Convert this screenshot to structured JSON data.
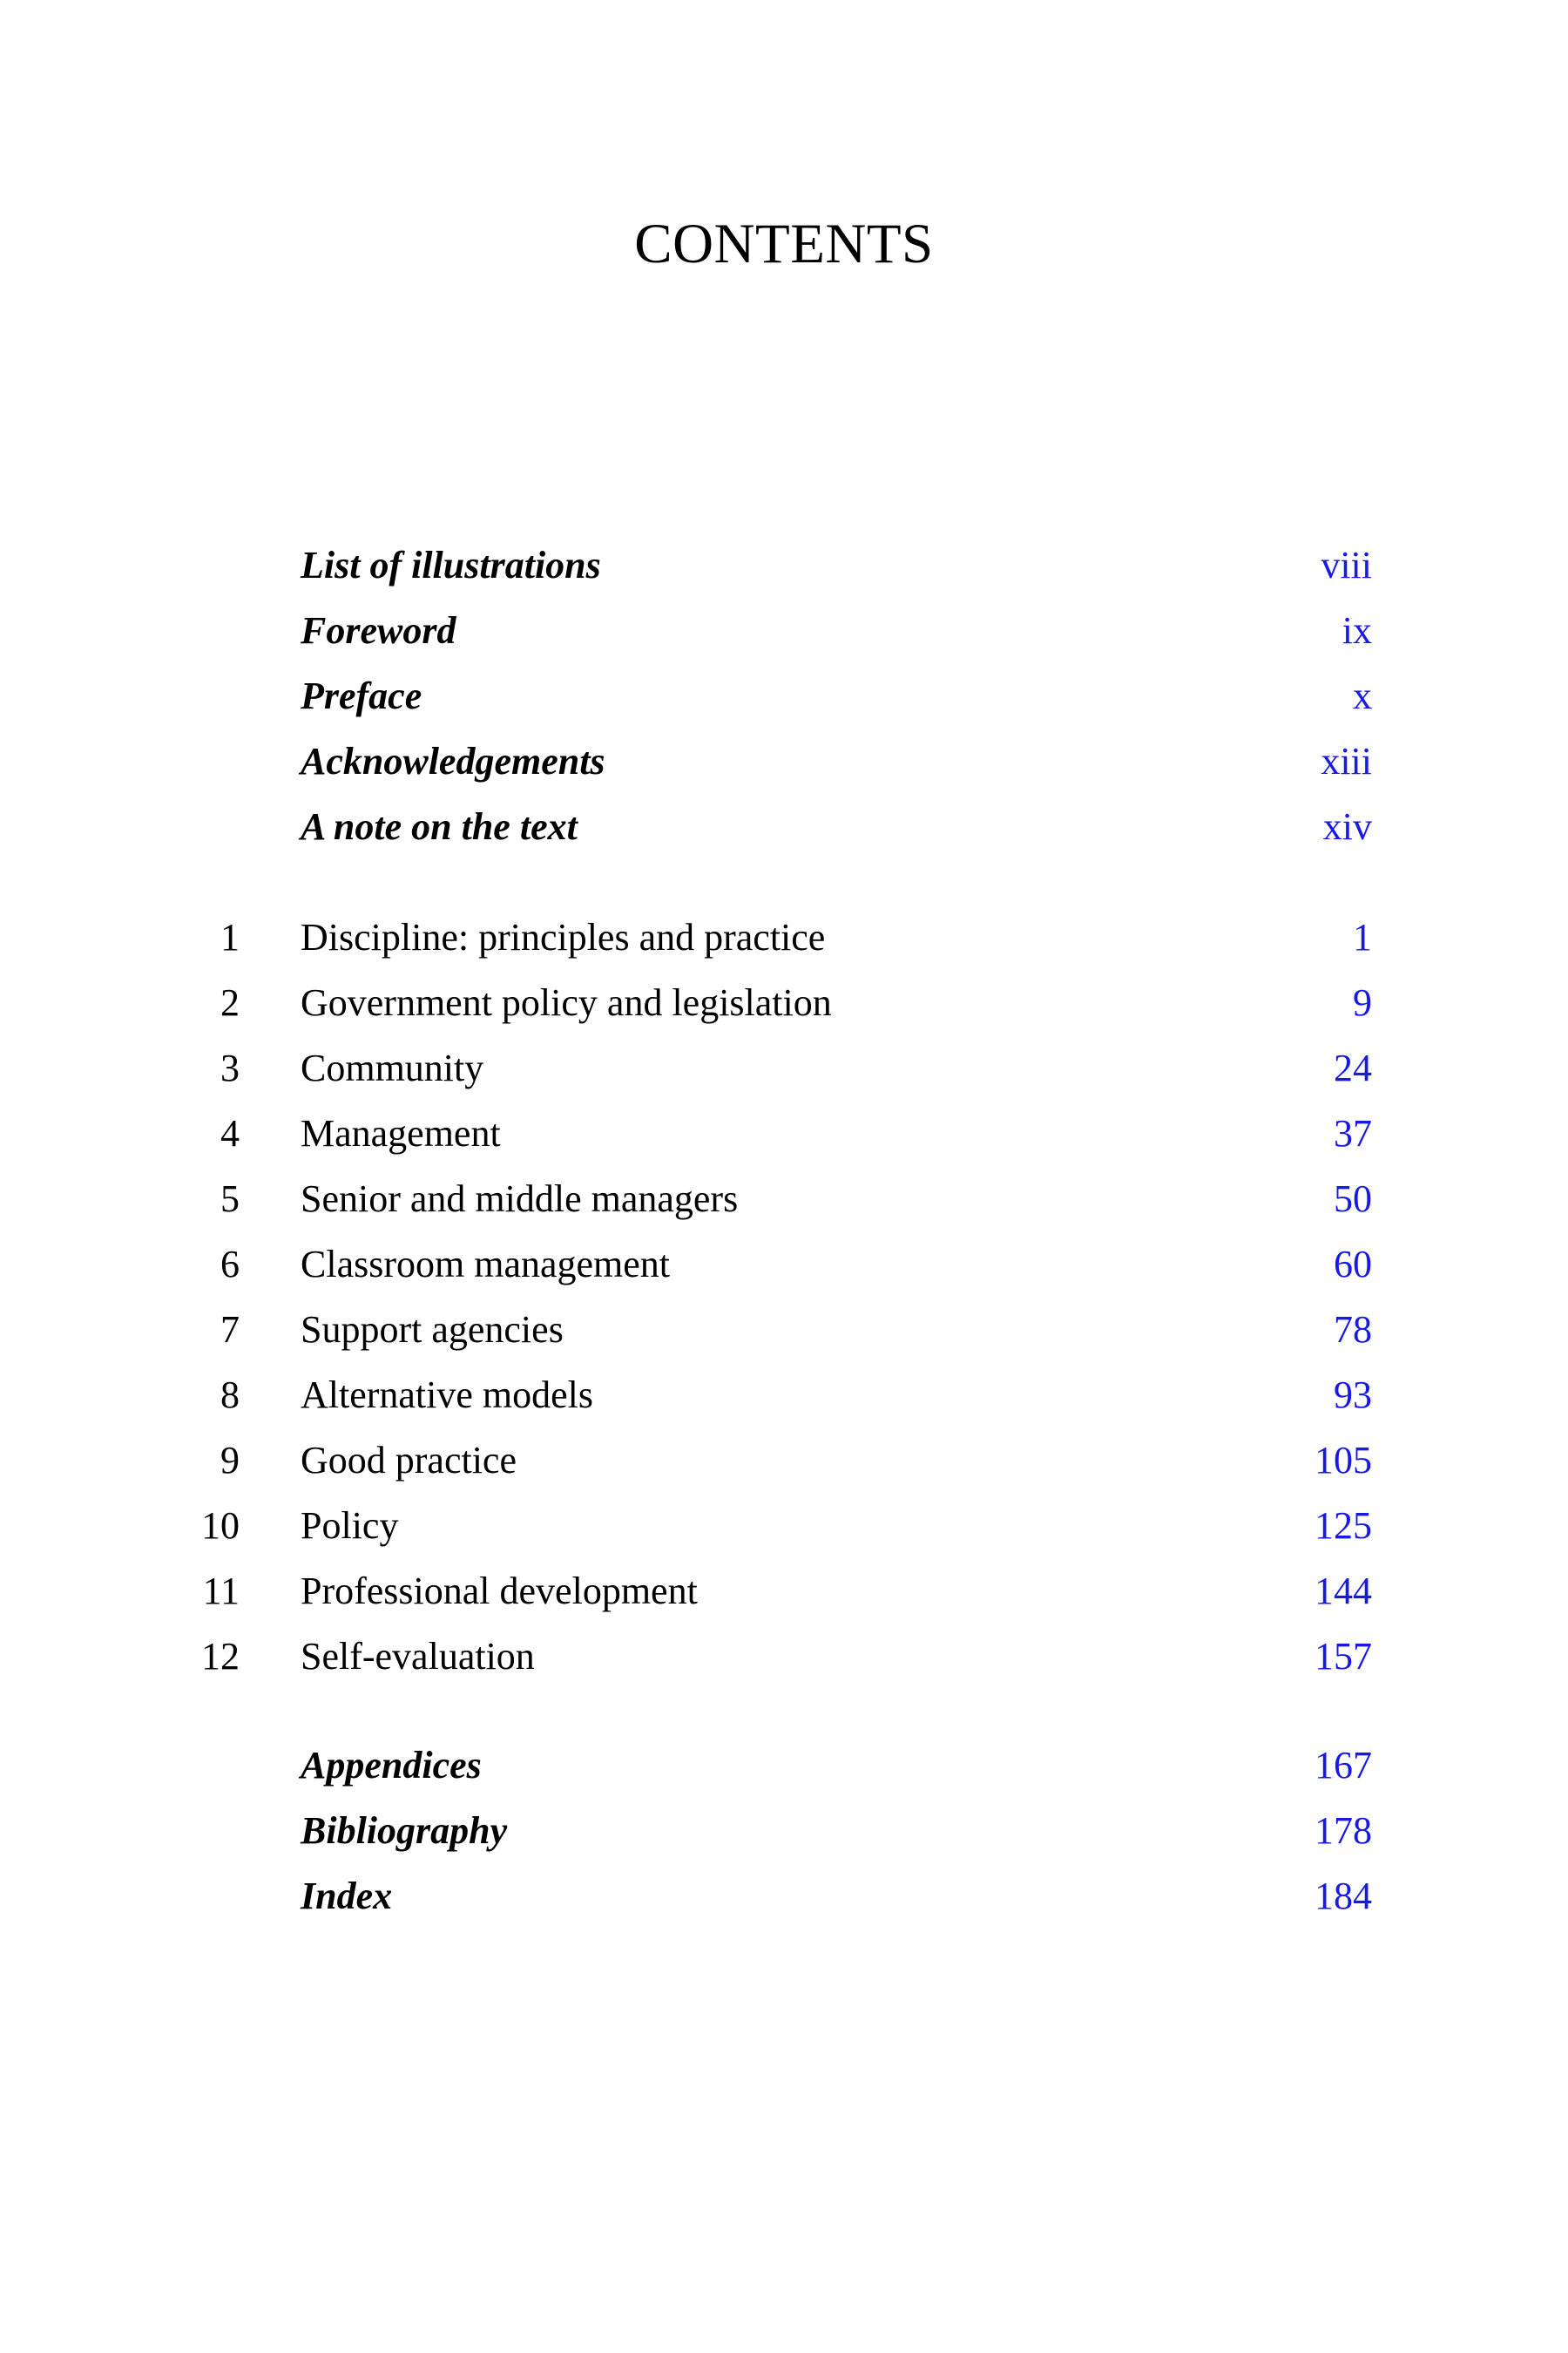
{
  "page": {
    "title": "CONTENTS"
  },
  "colors": {
    "link_blue": "#1919e6",
    "ink": "#000000",
    "paper": "#ffffff"
  },
  "front_matter": [
    {
      "label": "List of illustrations",
      "page": "viii"
    },
    {
      "label": "Foreword",
      "page": "ix"
    },
    {
      "label": "Preface",
      "page": "x"
    },
    {
      "label": "Acknowledgements",
      "page": "xiii"
    },
    {
      "label": "A note on the text",
      "page": "xiv"
    }
  ],
  "chapters": [
    {
      "number": "1",
      "title": "Discipline: principles and practice",
      "page": "1"
    },
    {
      "number": "2",
      "title": "Government policy and legislation",
      "page": "9"
    },
    {
      "number": "3",
      "title": "Community",
      "page": "24"
    },
    {
      "number": "4",
      "title": "Management",
      "page": "37"
    },
    {
      "number": "5",
      "title": "Senior and middle managers",
      "page": "50"
    },
    {
      "number": "6",
      "title": "Classroom management",
      "page": "60"
    },
    {
      "number": "7",
      "title": "Support agencies",
      "page": "78"
    },
    {
      "number": "8",
      "title": "Alternative models",
      "page": "93"
    },
    {
      "number": "9",
      "title": "Good practice",
      "page": "105"
    },
    {
      "number": "10",
      "title": "Policy",
      "page": "125"
    },
    {
      "number": "11",
      "title": "Professional development",
      "page": "144"
    },
    {
      "number": "12",
      "title": "Self-evaluation",
      "page": "157"
    }
  ],
  "back_matter": [
    {
      "label": "Appendices",
      "page": "167"
    },
    {
      "label": "Bibliography",
      "page": "178"
    },
    {
      "label": "Index",
      "page": "184"
    }
  ]
}
